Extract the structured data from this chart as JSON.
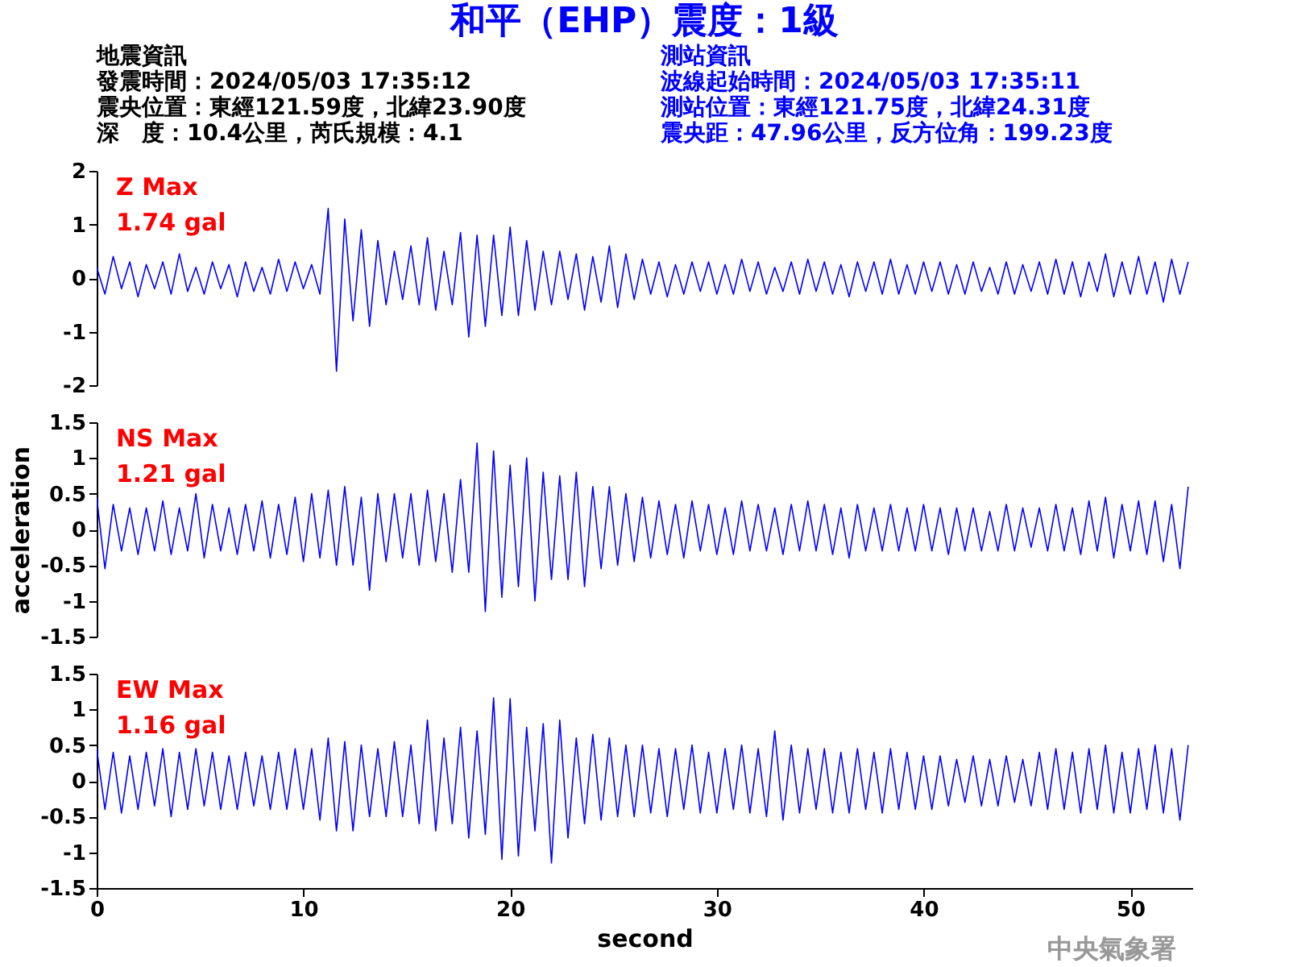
{
  "chart_data": [
    {
      "type": "other",
      "title": "和平（EHP）震度：1級",
      "annotations": [
        "地震資訊",
        "發震時間：2024/05/03 17:35:12",
        "震央位置：東經121.59度，北緯23.90度",
        "深　度：10.4公里，芮氏規模：4.1",
        "測站資訊",
        "波線起始時間：2024/05/03 17:35:11",
        "測站位置：東經121.75度，北緯24.31度",
        "震央距：47.96公里，反方位角：199.23度"
      ]
    },
    {
      "type": "line",
      "ylim": [
        -2,
        2
      ],
      "yticks": [
        -2,
        -1,
        0,
        1,
        2
      ],
      "tick_labels": "y",
      "line_style": "solid",
      "annotations": [
        "Z Max",
        "1.74 gal"
      ],
      "x": [
        0,
        0.4,
        0.8,
        1.2,
        1.6,
        2,
        2.4,
        2.8,
        3.2,
        3.6,
        4,
        4.4,
        4.8,
        5.2,
        5.6,
        6,
        6.4,
        6.8,
        7.2,
        7.6,
        8,
        8.4,
        8.8,
        9.2,
        9.6,
        10,
        10.4,
        10.8,
        11.2,
        11.6,
        12,
        12.4,
        12.8,
        13.2,
        13.6,
        14,
        14.4,
        14.8,
        15.2,
        15.6,
        16,
        16.4,
        16.8,
        17.2,
        17.6,
        18,
        18.4,
        18.8,
        19.2,
        19.6,
        20,
        20.4,
        20.8,
        21.2,
        21.6,
        22,
        22.4,
        22.8,
        23.2,
        23.6,
        24,
        24.4,
        24.8,
        25.2,
        25.6,
        26,
        26.4,
        26.8,
        27.2,
        27.6,
        28,
        28.4,
        28.8,
        29.2,
        29.6,
        30,
        30.4,
        30.8,
        31.2,
        31.6,
        32,
        32.4,
        32.8,
        33.2,
        33.6,
        34,
        34.4,
        34.8,
        35.2,
        35.6,
        36,
        36.4,
        36.8,
        37.2,
        37.6,
        38,
        38.4,
        38.8,
        39.2,
        39.6,
        40,
        40.4,
        40.8,
        41.2,
        41.6,
        42,
        42.4,
        42.8,
        43.2,
        43.6,
        44,
        44.4,
        44.8,
        45.2,
        45.6,
        46,
        46.4,
        46.8,
        47.2,
        47.6,
        48,
        48.4,
        48.8,
        49.2,
        49.6,
        50,
        50.4,
        50.8,
        51.2,
        51.6,
        52,
        52.4,
        52.8
      ],
      "series": [
        {
          "color": "#0000ff",
          "values": [
            0.2,
            -0.3,
            0.4,
            -0.2,
            0.3,
            -0.35,
            0.25,
            -0.2,
            0.3,
            -0.3,
            0.45,
            -0.25,
            0.2,
            -0.3,
            0.3,
            -0.2,
            0.25,
            -0.35,
            0.3,
            -0.25,
            0.2,
            -0.3,
            0.35,
            -0.25,
            0.3,
            -0.2,
            0.25,
            -0.3,
            1.3,
            -1.74,
            1.1,
            -0.8,
            0.9,
            -0.9,
            0.7,
            -0.5,
            0.5,
            -0.4,
            0.6,
            -0.5,
            0.75,
            -0.6,
            0.5,
            -0.5,
            0.85,
            -1.1,
            0.8,
            -0.9,
            0.8,
            -0.7,
            0.95,
            -0.7,
            0.7,
            -0.6,
            0.5,
            -0.5,
            0.5,
            -0.4,
            0.45,
            -0.6,
            0.4,
            -0.45,
            0.6,
            -0.55,
            0.45,
            -0.4,
            0.35,
            -0.3,
            0.3,
            -0.35,
            0.25,
            -0.3,
            0.3,
            -0.25,
            0.3,
            -0.3,
            0.25,
            -0.3,
            0.35,
            -0.25,
            0.3,
            -0.3,
            0.2,
            -0.25,
            0.3,
            -0.3,
            0.35,
            -0.25,
            0.3,
            -0.3,
            0.25,
            -0.35,
            0.3,
            -0.25,
            0.3,
            -0.3,
            0.35,
            -0.3,
            0.25,
            -0.3,
            0.3,
            -0.25,
            0.3,
            -0.3,
            0.25,
            -0.3,
            0.3,
            -0.25,
            0.2,
            -0.3,
            0.3,
            -0.3,
            0.25,
            -0.25,
            0.3,
            -0.3,
            0.35,
            -0.3,
            0.3,
            -0.35,
            0.3,
            -0.25,
            0.45,
            -0.35,
            0.3,
            -0.3,
            0.4,
            -0.3,
            0.3,
            -0.45,
            0.35,
            -0.3,
            0.3
          ]
        }
      ]
    },
    {
      "type": "line",
      "ylim": [
        -1.5,
        1.5
      ],
      "yticks": [
        -1.5,
        -1,
        -0.5,
        0,
        0.5,
        1,
        1.5
      ],
      "tick_labels": "y",
      "ylabel": "acceleration",
      "line_style": "solid",
      "annotations": [
        "NS Max",
        "1.21 gal"
      ],
      "x": [
        0,
        0.4,
        0.8,
        1.2,
        1.6,
        2,
        2.4,
        2.8,
        3.2,
        3.6,
        4,
        4.4,
        4.8,
        5.2,
        5.6,
        6,
        6.4,
        6.8,
        7.2,
        7.6,
        8,
        8.4,
        8.8,
        9.2,
        9.6,
        10,
        10.4,
        10.8,
        11.2,
        11.6,
        12,
        12.4,
        12.8,
        13.2,
        13.6,
        14,
        14.4,
        14.8,
        15.2,
        15.6,
        16,
        16.4,
        16.8,
        17.2,
        17.6,
        18,
        18.4,
        18.8,
        19.2,
        19.6,
        20,
        20.4,
        20.8,
        21.2,
        21.6,
        22,
        22.4,
        22.8,
        23.2,
        23.6,
        24,
        24.4,
        24.8,
        25.2,
        25.6,
        26,
        26.4,
        26.8,
        27.2,
        27.6,
        28,
        28.4,
        28.8,
        29.2,
        29.6,
        30,
        30.4,
        30.8,
        31.2,
        31.6,
        32,
        32.4,
        32.8,
        33.2,
        33.6,
        34,
        34.4,
        34.8,
        35.2,
        35.6,
        36,
        36.4,
        36.8,
        37.2,
        37.6,
        38,
        38.4,
        38.8,
        39.2,
        39.6,
        40,
        40.4,
        40.8,
        41.2,
        41.6,
        42,
        42.4,
        42.8,
        43.2,
        43.6,
        44,
        44.4,
        44.8,
        45.2,
        45.6,
        46,
        46.4,
        46.8,
        47.2,
        47.6,
        48,
        48.4,
        48.8,
        49.2,
        49.6,
        50,
        50.4,
        50.8,
        51.2,
        51.6,
        52,
        52.4,
        52.8
      ],
      "series": [
        {
          "color": "#0000ff",
          "values": [
            0.45,
            -0.55,
            0.35,
            -0.3,
            0.3,
            -0.35,
            0.3,
            -0.3,
            0.4,
            -0.35,
            0.3,
            -0.3,
            0.5,
            -0.4,
            0.35,
            -0.3,
            0.3,
            -0.35,
            0.35,
            -0.3,
            0.4,
            -0.4,
            0.35,
            -0.35,
            0.45,
            -0.45,
            0.5,
            -0.4,
            0.55,
            -0.5,
            0.6,
            -0.5,
            0.45,
            -0.85,
            0.5,
            -0.45,
            0.5,
            -0.4,
            0.5,
            -0.5,
            0.55,
            -0.45,
            0.5,
            -0.6,
            0.7,
            -0.6,
            1.21,
            -1.15,
            1.1,
            -0.95,
            0.9,
            -0.8,
            1.0,
            -1.0,
            0.8,
            -0.7,
            0.75,
            -0.7,
            0.8,
            -0.8,
            0.6,
            -0.55,
            0.6,
            -0.5,
            0.5,
            -0.45,
            0.45,
            -0.4,
            0.4,
            -0.35,
            0.35,
            -0.4,
            0.4,
            -0.3,
            0.35,
            -0.35,
            0.3,
            -0.35,
            0.4,
            -0.3,
            0.35,
            -0.3,
            0.3,
            -0.35,
            0.35,
            -0.3,
            0.4,
            -0.3,
            0.35,
            -0.35,
            0.3,
            -0.4,
            0.35,
            -0.3,
            0.3,
            -0.3,
            0.35,
            -0.3,
            0.3,
            -0.3,
            0.35,
            -0.3,
            0.3,
            -0.35,
            0.3,
            -0.3,
            0.3,
            -0.3,
            0.25,
            -0.3,
            0.35,
            -0.3,
            0.3,
            -0.25,
            0.3,
            -0.3,
            0.35,
            -0.3,
            0.3,
            -0.35,
            0.4,
            -0.3,
            0.45,
            -0.4,
            0.35,
            -0.3,
            0.4,
            -0.35,
            0.4,
            -0.45,
            0.35,
            -0.55,
            0.6
          ]
        }
      ]
    },
    {
      "type": "line",
      "xlim": [
        0,
        53
      ],
      "xticks": [
        0,
        10,
        20,
        30,
        40,
        50
      ],
      "ylim": [
        -1.5,
        1.5
      ],
      "yticks": [
        -1.5,
        -1,
        -0.5,
        0,
        0.5,
        1,
        1.5
      ],
      "xlabel": "second",
      "line_style": "solid",
      "annotations": [
        "EW Max",
        "1.16 gal",
        "中央氣象署"
      ],
      "x": [
        0,
        0.4,
        0.8,
        1.2,
        1.6,
        2,
        2.4,
        2.8,
        3.2,
        3.6,
        4,
        4.4,
        4.8,
        5.2,
        5.6,
        6,
        6.4,
        6.8,
        7.2,
        7.6,
        8,
        8.4,
        8.8,
        9.2,
        9.6,
        10,
        10.4,
        10.8,
        11.2,
        11.6,
        12,
        12.4,
        12.8,
        13.2,
        13.6,
        14,
        14.4,
        14.8,
        15.2,
        15.6,
        16,
        16.4,
        16.8,
        17.2,
        17.6,
        18,
        18.4,
        18.8,
        19.2,
        19.6,
        20,
        20.4,
        20.8,
        21.2,
        21.6,
        22,
        22.4,
        22.8,
        23.2,
        23.6,
        24,
        24.4,
        24.8,
        25.2,
        25.6,
        26,
        26.4,
        26.8,
        27.2,
        27.6,
        28,
        28.4,
        28.8,
        29.2,
        29.6,
        30,
        30.4,
        30.8,
        31.2,
        31.6,
        32,
        32.4,
        32.8,
        33.2,
        33.6,
        34,
        34.4,
        34.8,
        35.2,
        35.6,
        36,
        36.4,
        36.8,
        37.2,
        37.6,
        38,
        38.4,
        38.8,
        39.2,
        39.6,
        40,
        40.4,
        40.8,
        41.2,
        41.6,
        42,
        42.4,
        42.8,
        43.2,
        43.6,
        44,
        44.4,
        44.8,
        45.2,
        45.6,
        46,
        46.4,
        46.8,
        47.2,
        47.6,
        48,
        48.4,
        48.8,
        49.2,
        49.6,
        50,
        50.4,
        50.8,
        51.2,
        51.6,
        52,
        52.4,
        52.8
      ],
      "series": [
        {
          "color": "#0000ff",
          "values": [
            0.45,
            -0.4,
            0.4,
            -0.45,
            0.35,
            -0.4,
            0.4,
            -0.35,
            0.45,
            -0.5,
            0.4,
            -0.4,
            0.45,
            -0.35,
            0.4,
            -0.4,
            0.35,
            -0.4,
            0.4,
            -0.35,
            0.35,
            -0.4,
            0.4,
            -0.4,
            0.45,
            -0.4,
            0.45,
            -0.55,
            0.6,
            -0.7,
            0.55,
            -0.7,
            0.5,
            -0.5,
            0.45,
            -0.5,
            0.55,
            -0.5,
            0.5,
            -0.6,
            0.85,
            -0.7,
            0.6,
            -0.6,
            0.75,
            -0.8,
            0.7,
            -0.75,
            1.16,
            -1.1,
            1.15,
            -1.05,
            0.75,
            -0.7,
            0.8,
            -1.15,
            0.85,
            -0.8,
            0.6,
            -0.6,
            0.65,
            -0.55,
            0.6,
            -0.5,
            0.5,
            -0.5,
            0.5,
            -0.45,
            0.45,
            -0.5,
            0.45,
            -0.4,
            0.5,
            -0.45,
            0.4,
            -0.45,
            0.45,
            -0.4,
            0.5,
            -0.45,
            0.45,
            -0.5,
            0.7,
            -0.55,
            0.5,
            -0.45,
            0.45,
            -0.4,
            0.45,
            -0.45,
            0.4,
            -0.45,
            0.45,
            -0.4,
            0.4,
            -0.45,
            0.45,
            -0.4,
            0.4,
            -0.4,
            0.35,
            -0.4,
            0.35,
            -0.35,
            0.3,
            -0.3,
            0.35,
            -0.35,
            0.3,
            -0.35,
            0.35,
            -0.3,
            0.3,
            -0.35,
            0.4,
            -0.4,
            0.45,
            -0.4,
            0.4,
            -0.45,
            0.45,
            -0.4,
            0.5,
            -0.45,
            0.4,
            -0.45,
            0.45,
            -0.4,
            0.5,
            -0.45,
            0.45,
            -0.55,
            0.5
          ]
        }
      ]
    }
  ]
}
